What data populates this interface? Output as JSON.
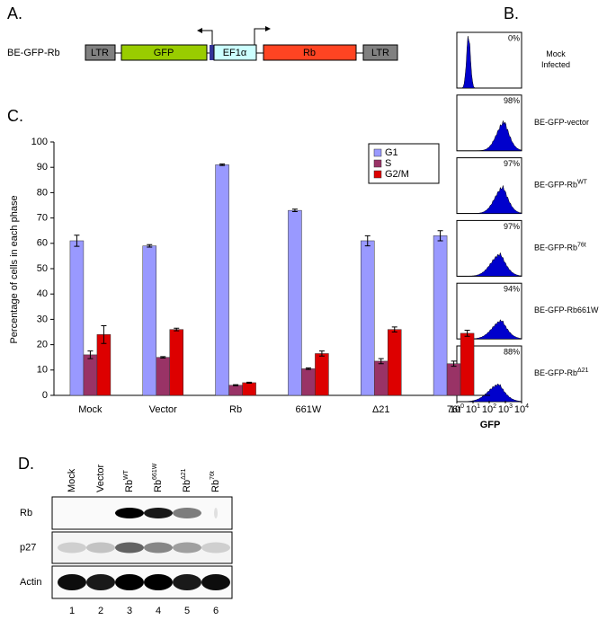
{
  "panel_a": {
    "letter": "A.",
    "construct": "BE-GFP-Rb",
    "elements": [
      "LTR",
      "GFP",
      "EF1α",
      "Rb",
      "LTR"
    ]
  },
  "panel_b": {
    "letter": "B.",
    "histograms": [
      {
        "percent": "0%",
        "label": [
          {
            "base": "Mock"
          },
          {
            "base": "Infected"
          }
        ]
      },
      {
        "percent": "98%",
        "label": [
          {
            "base": "BE-GFP-vector"
          }
        ]
      },
      {
        "percent": "97%",
        "label": [
          {
            "base": "BE-GFP-Rb",
            "sup": "WT"
          }
        ]
      },
      {
        "percent": "97%",
        "label": [
          {
            "base": "BE-GFP-Rb",
            "sup": "76t"
          }
        ]
      },
      {
        "percent": "94%",
        "label": [
          {
            "base": "BE-GFP-Rb661W"
          }
        ]
      },
      {
        "percent": "88%",
        "label": [
          {
            "base": "BE-GFP-Rb",
            "sup": "Δ21"
          }
        ]
      }
    ],
    "x_ticks": [
      {
        "base": "10",
        "sup": "0"
      },
      {
        "base": "10",
        "sup": "1"
      },
      {
        "base": "10",
        "sup": "2"
      },
      {
        "base": "10",
        "sup": "3"
      },
      {
        "base": "10",
        "sup": "4"
      }
    ],
    "x_label": "GFP"
  },
  "chart_letter": "C.",
  "chart_data": {
    "type": "bar",
    "y_label": "Percentage of cells in each phase",
    "categories": [
      "Mock",
      "Vector",
      "Rb",
      "661W",
      "Δ21",
      "76t"
    ],
    "series": [
      {
        "name": "G1",
        "color": "#9999ff",
        "values": [
          61,
          59,
          91,
          73,
          61,
          63
        ],
        "errors": [
          2.2,
          0.5,
          0.3,
          0.5,
          2,
          2
        ]
      },
      {
        "name": "S",
        "color": "#993366",
        "values": [
          16,
          15,
          4,
          10.5,
          13.5,
          12.5
        ],
        "errors": [
          1.5,
          0.3,
          0.2,
          0.3,
          1,
          1
        ]
      },
      {
        "name": "G2/M",
        "color": "#dd0000",
        "values": [
          24,
          26,
          5,
          16.5,
          26,
          24.5
        ],
        "errors": [
          3.5,
          0.5,
          0.2,
          1,
          1,
          1.2
        ]
      }
    ],
    "ylim": [
      0,
      100
    ],
    "yticks": [
      0,
      10,
      20,
      30,
      40,
      50,
      60,
      70,
      80,
      90,
      100
    ],
    "legend": "top-right"
  },
  "panel_d": {
    "letter": "D.",
    "lanes": [
      {
        "base": "Mock"
      },
      {
        "base": "Vector"
      },
      {
        "base": "Rb",
        "sup": "WT"
      },
      {
        "base": "Rb",
        "sup": "661W"
      },
      {
        "base": "Rb",
        "sup": "Δ21"
      },
      {
        "base": "Rb",
        "sup": "76t"
      }
    ],
    "rows": [
      "Rb",
      "p27",
      "Actin"
    ],
    "lane_numbers": [
      "1",
      "2",
      "3",
      "4",
      "5",
      "6"
    ]
  }
}
